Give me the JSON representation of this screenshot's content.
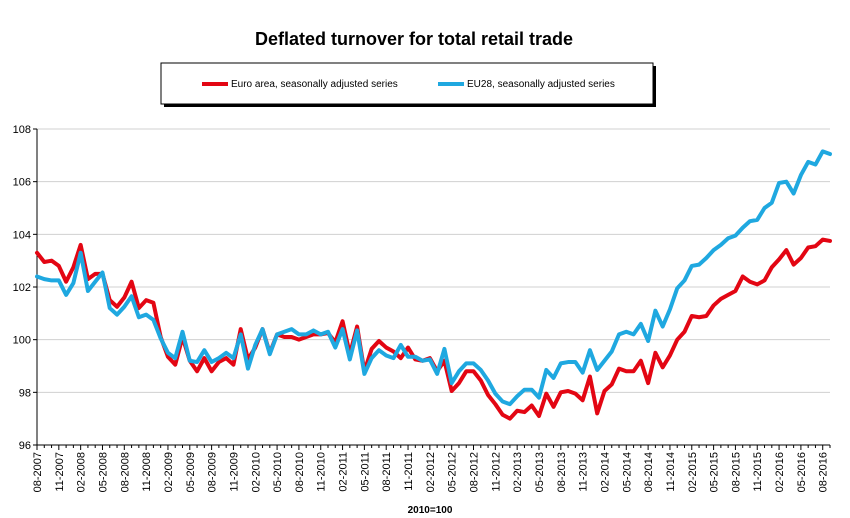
{
  "chart_data": {
    "type": "line",
    "title": "Deflated turnover for total retail trade",
    "xlabel": "2010=100",
    "ylabel": "",
    "ylim": [
      96,
      108
    ],
    "yticks": [
      "96",
      "98",
      "100",
      "102",
      "104",
      "106",
      "108"
    ],
    "xtick_labels": [
      "08-2007",
      "11-2007",
      "02-2008",
      "05-2008",
      "08-2008",
      "11-2008",
      "02-2009",
      "05-2009",
      "08-2009",
      "11-2009",
      "02-2010",
      "05-2010",
      "08-2010",
      "11-2010",
      "02-2011",
      "05-2011",
      "08-2011",
      "11-2011",
      "02-2012",
      "05-2012",
      "08-2012",
      "11-2012",
      "02-2013",
      "05-2013",
      "08-2013",
      "11-2013",
      "02-2014",
      "05-2014",
      "08-2014",
      "11-2014",
      "02-2015",
      "05-2015",
      "08-2015",
      "11-2015",
      "02-2016",
      "05-2016",
      "08-2016"
    ],
    "grid": true,
    "legend_position": "top",
    "series": [
      {
        "name": "Euro area, seasonally adjusted series",
        "color": "#e30613",
        "values": [
          103.3,
          102.95,
          103.0,
          102.8,
          102.2,
          102.75,
          103.6,
          102.3,
          102.5,
          102.5,
          101.5,
          101.25,
          101.6,
          102.2,
          101.2,
          101.5,
          101.4,
          100.1,
          99.35,
          99.05,
          100.1,
          99.2,
          98.8,
          99.3,
          98.8,
          99.15,
          99.3,
          99.05,
          100.4,
          99.25,
          99.7,
          100.4,
          99.5,
          100.2,
          100.1,
          100.1,
          100.0,
          100.1,
          100.2,
          100.2,
          100.25,
          99.9,
          100.7,
          99.45,
          100.5,
          98.8,
          99.65,
          99.95,
          99.7,
          99.55,
          99.3,
          99.7,
          99.25,
          99.2,
          99.3,
          98.8,
          99.2,
          98.05,
          98.35,
          98.8,
          98.8,
          98.45,
          97.9,
          97.55,
          97.15,
          97.0,
          97.3,
          97.25,
          97.5,
          97.1,
          97.95,
          97.45,
          98.0,
          98.05,
          97.95,
          97.7,
          98.6,
          97.2,
          98.05,
          98.3,
          98.9,
          98.8,
          98.8,
          99.2,
          98.35,
          99.5,
          98.95,
          99.4,
          100.0,
          100.3,
          100.9,
          100.85,
          100.9,
          101.3,
          101.55,
          101.7,
          101.85,
          102.4,
          102.2,
          102.1,
          102.25,
          102.75,
          103.05,
          103.4,
          102.85,
          103.1,
          103.5,
          103.55,
          103.8,
          103.75
        ]
      },
      {
        "name": "EU28, seasonally adjusted series",
        "color": "#1fa8e0",
        "values": [
          102.4,
          102.3,
          102.25,
          102.25,
          101.7,
          102.15,
          103.3,
          101.85,
          102.2,
          102.55,
          101.2,
          100.95,
          101.25,
          101.65,
          100.85,
          100.95,
          100.75,
          100.05,
          99.5,
          99.3,
          100.3,
          99.2,
          99.15,
          99.6,
          99.15,
          99.3,
          99.5,
          99.3,
          100.2,
          98.9,
          99.8,
          100.4,
          99.45,
          100.2,
          100.3,
          100.4,
          100.2,
          100.2,
          100.35,
          100.2,
          100.3,
          99.7,
          100.4,
          99.25,
          100.35,
          98.7,
          99.3,
          99.6,
          99.4,
          99.3,
          99.8,
          99.35,
          99.35,
          99.2,
          99.25,
          98.7,
          99.65,
          98.35,
          98.8,
          99.1,
          99.1,
          98.85,
          98.45,
          97.95,
          97.65,
          97.55,
          97.85,
          98.1,
          98.1,
          97.8,
          98.85,
          98.55,
          99.1,
          99.15,
          99.15,
          98.75,
          99.6,
          98.85,
          99.2,
          99.55,
          100.2,
          100.3,
          100.2,
          100.6,
          99.95,
          101.1,
          100.5,
          101.15,
          101.95,
          102.25,
          102.8,
          102.85,
          103.1,
          103.4,
          103.6,
          103.85,
          103.95,
          104.25,
          104.5,
          104.55,
          105.0,
          105.2,
          105.95,
          106.0,
          105.55,
          106.25,
          106.75,
          106.65,
          107.15,
          107.05
        ]
      }
    ]
  }
}
